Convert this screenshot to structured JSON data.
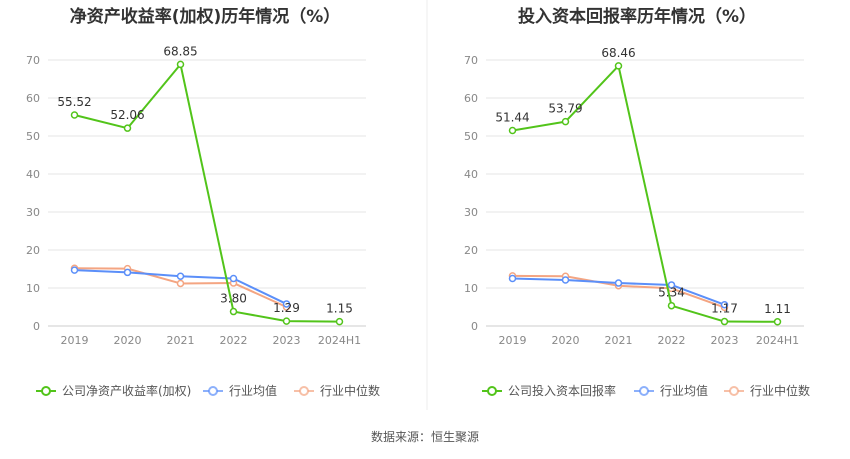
{
  "chart_data": [
    {
      "type": "line",
      "title": "净资产收益率(加权)历年情况（%）",
      "categories": [
        "2019",
        "2020",
        "2021",
        "2022",
        "2023",
        "2024H1"
      ],
      "ylim": [
        0,
        70
      ],
      "yticks": [
        0,
        10,
        20,
        30,
        40,
        50,
        60,
        70
      ],
      "grid": true,
      "legend_position": "bottom",
      "series": [
        {
          "name": "公司净资产收益率(加权)",
          "color": "#52c41a",
          "values": [
            55.52,
            52.06,
            68.85,
            3.8,
            1.29,
            1.15
          ],
          "labels": [
            "55.52",
            "52.06",
            "68.85",
            "3.80",
            "1.29",
            "1.15"
          ]
        },
        {
          "name": "行业均值",
          "color": "#5b8ff9",
          "values": [
            14.7,
            14.1,
            13.1,
            12.5,
            5.8,
            null
          ]
        },
        {
          "name": "行业中位数",
          "color": "#f4a582",
          "values": [
            15.2,
            15.1,
            11.2,
            11.3,
            5.0,
            null
          ]
        }
      ]
    },
    {
      "type": "line",
      "title": "投入资本回报率历年情况（%）",
      "categories": [
        "2019",
        "2020",
        "2021",
        "2022",
        "2023",
        "2024H1"
      ],
      "ylim": [
        0,
        70
      ],
      "yticks": [
        0,
        10,
        20,
        30,
        40,
        50,
        60,
        70
      ],
      "grid": true,
      "legend_position": "bottom",
      "series": [
        {
          "name": "公司投入资本回报率",
          "color": "#52c41a",
          "values": [
            51.44,
            53.79,
            68.46,
            5.34,
            1.17,
            1.11
          ],
          "labels": [
            "51.44",
            "53.79",
            "68.46",
            "5.34",
            "1.17",
            "1.11"
          ]
        },
        {
          "name": "行业均值",
          "color": "#5b8ff9",
          "values": [
            12.5,
            12.1,
            11.3,
            10.8,
            5.6,
            null
          ]
        },
        {
          "name": "行业中位数",
          "color": "#f4a582",
          "values": [
            13.2,
            13.1,
            10.6,
            9.9,
            4.9,
            null
          ]
        }
      ]
    }
  ],
  "source_text": "数据来源：恒生聚源"
}
